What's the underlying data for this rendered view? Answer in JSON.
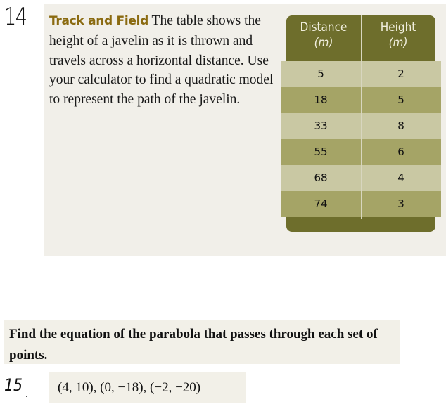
{
  "problem14": {
    "number": "14",
    "heading": "Track and Field",
    "text": "The table shows the height of a javelin as it is thrown and travels across a horizontal distance. Use your calculator to find a quadratic model to represent the path of the javelin.",
    "table": {
      "headers": [
        {
          "line1": "Distance",
          "line2": "(m)"
        },
        {
          "line1": "Height",
          "line2": "(m)"
        }
      ],
      "rows": [
        [
          "5",
          "2"
        ],
        [
          "18",
          "5"
        ],
        [
          "33",
          "8"
        ],
        [
          "55",
          "6"
        ],
        [
          "68",
          "4"
        ],
        [
          "74",
          "3"
        ]
      ]
    }
  },
  "instructions": "Find the equation of the parabola that passes through each set of points.",
  "problem15": {
    "number": "15",
    "points": "(4, 10), (0, −18), (−2, −20)"
  },
  "colors": {
    "header": "#6e6e2c",
    "row_light": "#c9c8a3",
    "row_dark": "#a5a466",
    "heading": "#8a6a10"
  }
}
